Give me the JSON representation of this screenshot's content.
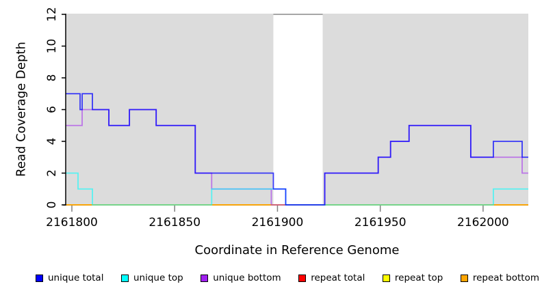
{
  "chart_data": {
    "type": "line",
    "step": true,
    "title": "",
    "xlabel": "Coordinate in Reference Genome",
    "ylabel": "Read Coverage Depth",
    "xlim": [
      2161797,
      2162022
    ],
    "ylim": [
      0,
      12
    ],
    "xticks": [
      2161800,
      2161850,
      2161900,
      2161950,
      2162000
    ],
    "yticks": [
      0,
      2,
      4,
      6,
      8,
      10,
      12
    ],
    "grid": false,
    "legend_position": "bottom",
    "plot_background_color": "#DCDCDC",
    "gap_background_color": "#FFFFFF",
    "background_regions": [
      [
        2161797,
        2161898
      ],
      [
        2161922,
        2162022
      ]
    ],
    "series": [
      {
        "name": "unique total",
        "color": "#0000FF",
        "opacity": 0.75,
        "draw_index": 5,
        "values": [
          [
            2161797,
            7
          ],
          [
            2161804,
            6
          ],
          [
            2161805,
            7
          ],
          [
            2161810,
            6
          ],
          [
            2161818,
            5
          ],
          [
            2161828,
            6
          ],
          [
            2161841,
            5
          ],
          [
            2161860,
            2
          ],
          [
            2161898,
            1
          ],
          [
            2161904,
            0
          ],
          [
            2161923,
            2
          ],
          [
            2161949,
            3
          ],
          [
            2161955,
            4
          ],
          [
            2161964,
            5
          ],
          [
            2161994,
            3
          ],
          [
            2162005,
            4
          ],
          [
            2162019,
            3
          ]
        ]
      },
      {
        "name": "unique top",
        "color": "#00FFFF",
        "opacity": 0.6,
        "draw_index": 4,
        "values": [
          [
            2161797,
            2
          ],
          [
            2161803,
            1
          ],
          [
            2161810,
            0
          ],
          [
            2161868,
            1
          ],
          [
            2161904,
            0
          ],
          [
            2162005,
            1
          ]
        ]
      },
      {
        "name": "unique bottom",
        "color": "#A020F0",
        "opacity": 0.55,
        "draw_index": 3,
        "values": [
          [
            2161797,
            5
          ],
          [
            2161805,
            6
          ],
          [
            2161818,
            5
          ],
          [
            2161828,
            6
          ],
          [
            2161841,
            5
          ],
          [
            2161860,
            2
          ],
          [
            2161868,
            1
          ],
          [
            2161897,
            0
          ],
          [
            2161923,
            2
          ],
          [
            2161949,
            3
          ],
          [
            2161955,
            4
          ],
          [
            2161964,
            5
          ],
          [
            2161994,
            3
          ],
          [
            2162019,
            2
          ]
        ]
      },
      {
        "name": "repeat total",
        "color": "#FF0000",
        "opacity": 0.6,
        "draw_index": 0,
        "values": [
          [
            2161797,
            0
          ]
        ]
      },
      {
        "name": "repeat top",
        "color": "#FFFF00",
        "opacity": 0.6,
        "draw_index": 1,
        "values": [
          [
            2161797,
            0
          ]
        ]
      },
      {
        "name": "repeat bottom",
        "color": "#FFA500",
        "opacity": 0.9,
        "draw_index": 2,
        "values": [
          [
            2161797,
            0
          ]
        ]
      }
    ]
  }
}
